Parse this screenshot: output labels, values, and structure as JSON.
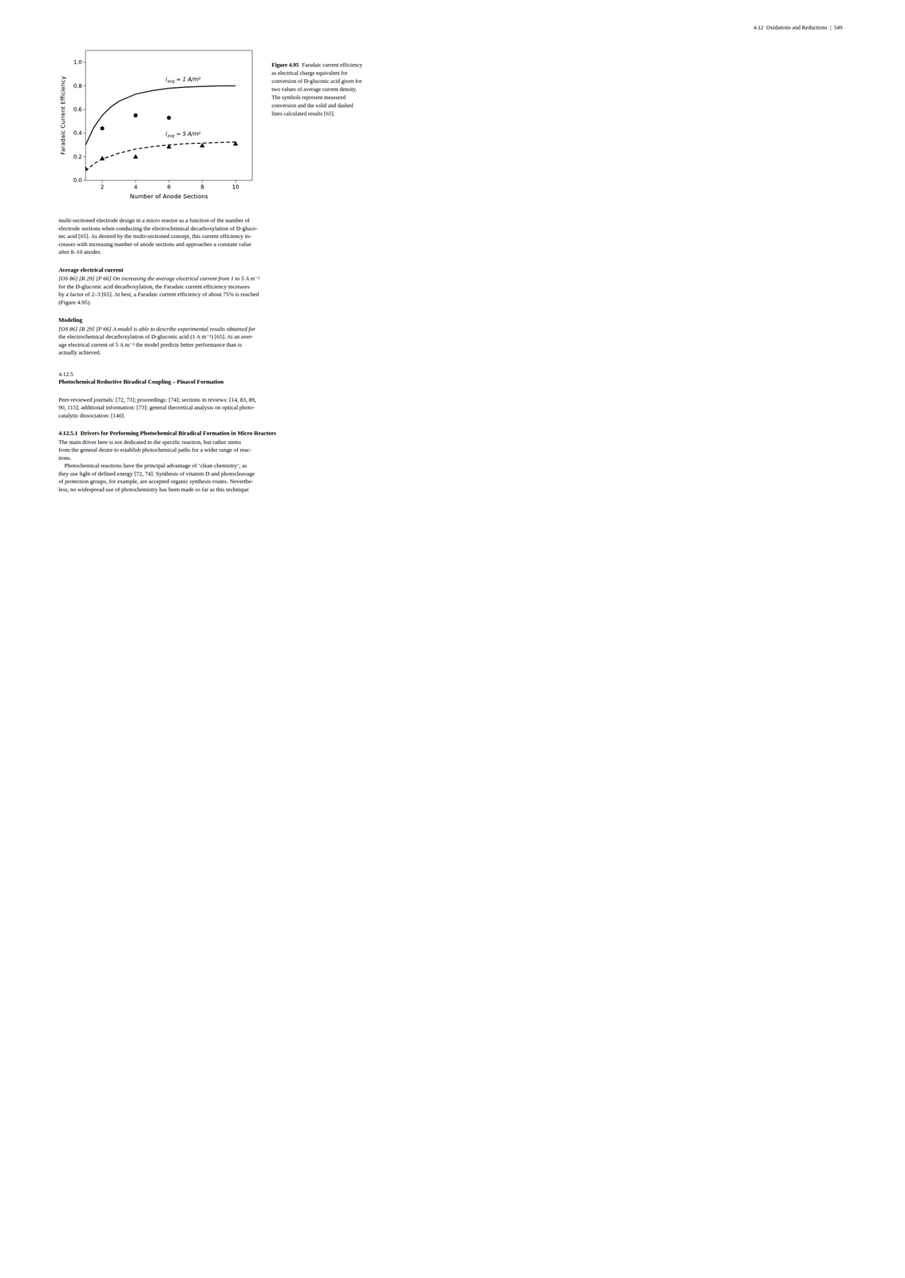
{
  "chart_data": {
    "type": "line",
    "xlabel": "Number of Anode Sections",
    "ylabel": "Faradaic Current Efficiency",
    "xlim": [
      1,
      11
    ],
    "ylim": [
      0.0,
      1.1
    ],
    "xticks": [
      2,
      4,
      6,
      8,
      10
    ],
    "yticks": [
      {
        "value": 0.0,
        "label": "0.0"
      },
      0.2,
      0.4,
      0.6,
      0.8,
      {
        "value": 1.0,
        "label": "1.0"
      }
    ],
    "grid": false,
    "series": [
      {
        "type": "line",
        "line_style": "solid",
        "marker": "none",
        "color": "#000000",
        "x": [
          1.0,
          1.5,
          2.0,
          2.5,
          3.0,
          4.0,
          5.0,
          6.0,
          7.0,
          8.0,
          9.0,
          10.0
        ],
        "values": [
          0.3,
          0.45,
          0.55,
          0.62,
          0.67,
          0.73,
          0.76,
          0.78,
          0.79,
          0.795,
          0.8,
          0.8
        ]
      },
      {
        "type": "scatter",
        "line_style": "none",
        "marker": "circle",
        "color": "#000000",
        "x": [
          2,
          4,
          6
        ],
        "values": [
          0.44,
          0.55,
          0.53
        ]
      },
      {
        "type": "line",
        "line_style": "dashed",
        "marker": "none",
        "color": "#000000",
        "x": [
          1.0,
          1.5,
          2.0,
          3.0,
          4.0,
          5.0,
          6.0,
          7.0,
          8.0,
          9.0,
          10.0
        ],
        "values": [
          0.08,
          0.14,
          0.18,
          0.23,
          0.265,
          0.285,
          0.3,
          0.31,
          0.315,
          0.32,
          0.325
        ]
      },
      {
        "type": "scatter",
        "line_style": "none",
        "marker": "triangle",
        "color": "#000000",
        "x": [
          1,
          2,
          4,
          6,
          8,
          10
        ],
        "values": [
          0.1,
          0.185,
          0.2,
          0.285,
          0.295,
          0.31
        ]
      }
    ],
    "annotations": [
      {
        "symbol": "i",
        "subscript": "avg",
        "text": " = 1 A/m²",
        "x": 5.8,
        "y": 0.84
      },
      {
        "symbol": "i",
        "subscript": "avg",
        "text": " = 5 A/m²",
        "x": 5.8,
        "y": 0.38
      }
    ]
  },
  "page": {
    "header": "4.12  Oxidations and Reductions  |  549",
    "caption": {
      "label": "Figure 4.95",
      "lines": [
        "Faradaic current efficiency",
        "as electrical charge equivalent for",
        "conversion of D-gluconic acid given for",
        "two values of average current density.",
        "The symbols represent measured",
        "conversion and the solid and dashed",
        "lines calculated results [65]."
      ]
    },
    "body_para1": [
      "multi-sectioned electrode design in a micro reactor as a function of the number of",
      "electrode sections when conducting the electrochemical decarboxylation of D-gluco-",
      "nic acid [65]. As desired by the multi-sectioned concept, this current efficiency in-",
      "creases with increasing number of anode sections and approaches a constant value",
      "after 8–10 anodes."
    ],
    "heading_avg": "Average electrical current",
    "body_avg": [
      "[OS 86] [R 29] [P 66] On increasing the average electrical current from 1 to 5 A m⁻²",
      "for the D-gluconic acid decarboxylation, the Faradaic current efficiency increases",
      "by a factor of 2–3 [65]. At best, a Faradaic current efficiency of about 75% is reached",
      "(Figure 4.95)."
    ],
    "heading_model": "Modeling",
    "body_model": [
      "[OS 86] [R 29] [P 66] A model is able to describe experimental results obtained for",
      "the electrochemical decarboxylation of D-gluconic acid (1 A m⁻²) [65]. At an aver-",
      "age electrical current of 5 A m⁻² the model predicts better performance than is",
      "actually achieved."
    ],
    "section_num": "4.12.5",
    "section_title": "Photochemical Reductive Biradical Coupling – Pinacol Formation",
    "body_peer": [
      "Peer-reviewed journals: [72, 73]; proceedings: [74]; sections in reviews: [14, 83, 89,",
      "90, 115]; additional information: [73]; general theoretical analysis on optical photo-",
      "catalytic dissociation: [140]."
    ],
    "subsection_title": "4.12.5.1  Drivers for Performing Photochemical Biradical Formation in Micro Reactors",
    "body_driver": [
      "The main driver here is not dedicated to the specific reaction, but rather stems",
      "from the general desire to establish photochemical paths for a wider range of reac-",
      "tions.",
      "    Photochemical reactions have the principal advantage of ‘clean chemistry’, as",
      "they use light of defined energy [72, 74]. Synthesis of vitamin D and photocleavage",
      "of protection groups, for example, are accepted organic synthesis routes. Neverthe-",
      "less, no widespread use of photochemistry has been made so far as this technique"
    ]
  }
}
